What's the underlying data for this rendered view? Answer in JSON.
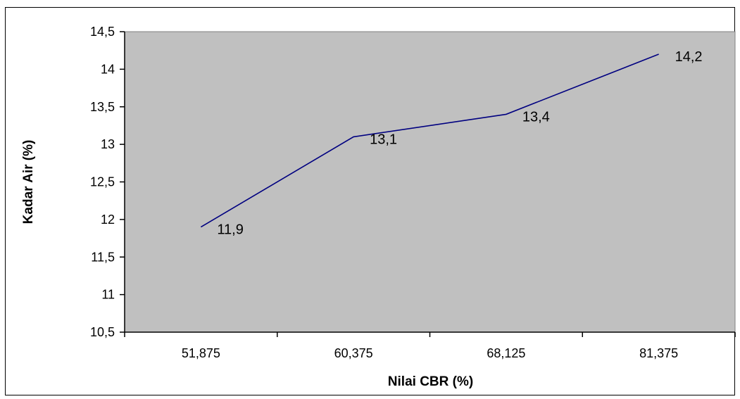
{
  "chart_data": {
    "type": "line",
    "categories": [
      "51,875",
      "60,375",
      "68,125",
      "81,375"
    ],
    "series": [
      {
        "values": [
          11.9,
          13.1,
          13.4,
          14.2
        ]
      }
    ],
    "data_labels": [
      "11,9",
      "13,1",
      "13,4",
      "14,2"
    ],
    "xlabel": "Nilai CBR (%)",
    "ylabel": "Kadar Air (%)",
    "ylim": [
      10.5,
      14.5
    ],
    "yticks": [
      10.5,
      11,
      11.5,
      12,
      12.5,
      13,
      13.5,
      14,
      14.5
    ],
    "ytick_labels": [
      "10,5",
      "11",
      "11,5",
      "12",
      "12,5",
      "13",
      "13,5",
      "14",
      "14,5"
    ],
    "grid": false,
    "legend": "none",
    "colors": {
      "plot_background": "#C0C0C0",
      "line": "#000080",
      "axis": "#000000"
    }
  }
}
